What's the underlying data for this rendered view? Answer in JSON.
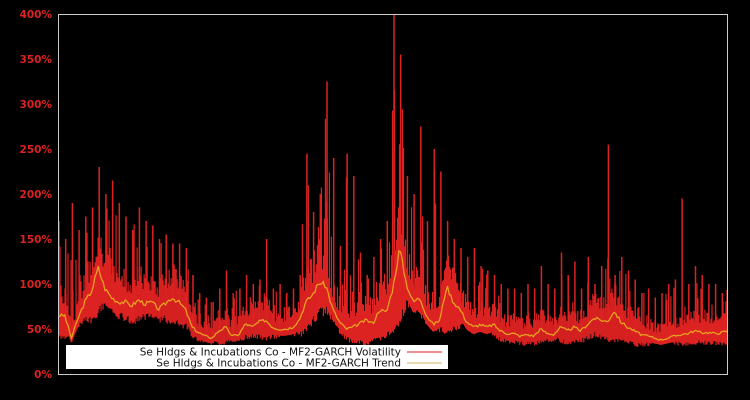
{
  "chart_data": {
    "type": "line",
    "title": "",
    "xlabel": "",
    "ylabel": "",
    "ylim": [
      0,
      400
    ],
    "y_ticks": [
      "0%",
      "50%",
      "100%",
      "150%",
      "200%",
      "250%",
      "300%",
      "350%",
      "400%"
    ],
    "y_tick_values": [
      0,
      50,
      100,
      150,
      200,
      250,
      300,
      350,
      400
    ],
    "grid": false,
    "legend_position": "lower-left",
    "colors": {
      "background": "#000000",
      "volatility": "#dd2222",
      "trend": "#e8a020",
      "legend_trend_swatch": "#d4b060",
      "frame": "#cccccc",
      "tick_label": "#dd2222"
    },
    "series": [
      {
        "name": "Se Hldgs & Incubations Co - MF2-GARCH Volatility",
        "note": "approximate envelope: index from left (0) to right (1) of plot, low/high volatility %",
        "x": [
          0.0,
          0.01,
          0.02,
          0.03,
          0.04,
          0.05,
          0.06,
          0.07,
          0.08,
          0.09,
          0.1,
          0.11,
          0.12,
          0.13,
          0.14,
          0.15,
          0.16,
          0.17,
          0.18,
          0.19,
          0.2,
          0.21,
          0.22,
          0.23,
          0.24,
          0.25,
          0.26,
          0.27,
          0.28,
          0.29,
          0.3,
          0.31,
          0.32,
          0.33,
          0.34,
          0.35,
          0.36,
          0.37,
          0.38,
          0.39,
          0.4,
          0.41,
          0.42,
          0.43,
          0.44,
          0.45,
          0.46,
          0.47,
          0.48,
          0.49,
          0.5,
          0.51,
          0.52,
          0.53,
          0.54,
          0.55,
          0.56,
          0.57,
          0.58,
          0.59,
          0.6,
          0.61,
          0.62,
          0.63,
          0.64,
          0.65,
          0.66,
          0.67,
          0.68,
          0.69,
          0.7,
          0.71,
          0.72,
          0.73,
          0.74,
          0.75,
          0.76,
          0.77,
          0.78,
          0.79,
          0.8,
          0.81,
          0.82,
          0.83,
          0.84,
          0.85,
          0.86,
          0.87,
          0.88,
          0.89,
          0.9,
          0.91,
          0.92,
          0.93,
          0.94,
          0.95,
          0.96,
          0.97,
          0.98,
          0.99,
          1.0
        ],
        "low": [
          45,
          40,
          50,
          55,
          60,
          62,
          70,
          80,
          72,
          68,
          64,
          60,
          62,
          66,
          68,
          64,
          62,
          60,
          58,
          55,
          45,
          40,
          38,
          36,
          35,
          36,
          38,
          40,
          42,
          44,
          42,
          40,
          42,
          44,
          48,
          46,
          44,
          50,
          60,
          70,
          72,
          65,
          50,
          40,
          38,
          36,
          35,
          38,
          40,
          44,
          50,
          60,
          80,
          78,
          70,
          60,
          55,
          50,
          48,
          50,
          55,
          60,
          66,
          60,
          55,
          45,
          40,
          38,
          36,
          35,
          34,
          35,
          36,
          38,
          40,
          38,
          36,
          36,
          38,
          40,
          45,
          42,
          40,
          38,
          38,
          36,
          34,
          33,
          34,
          36,
          38,
          38,
          36,
          34,
          34,
          35,
          36,
          36,
          35,
          34,
          35
        ],
        "high": [
          170,
          150,
          190,
          160,
          175,
          185,
          230,
          200,
          215,
          190,
          175,
          160,
          185,
          170,
          165,
          150,
          155,
          145,
          145,
          140,
          110,
          90,
          85,
          80,
          95,
          115,
          90,
          95,
          110,
          100,
          105,
          150,
          95,
          100,
          90,
          95,
          110,
          245,
          180,
          200,
          325,
          240,
          140,
          245,
          220,
          135,
          110,
          130,
          150,
          170,
          400,
          355,
          220,
          200,
          275,
          170,
          250,
          225,
          170,
          150,
          140,
          130,
          140,
          120,
          115,
          110,
          100,
          95,
          95,
          90,
          100,
          95,
          120,
          100,
          95,
          135,
          110,
          125,
          95,
          130,
          100,
          120,
          255,
          110,
          130,
          115,
          105,
          90,
          95,
          85,
          90,
          100,
          105,
          195,
          100,
          120,
          110,
          100,
          100,
          90,
          95
        ]
      },
      {
        "name": "Se Hldgs & Incubations Co - MF2-GARCH Trend",
        "x": [
          0.0,
          0.01,
          0.02,
          0.03,
          0.04,
          0.05,
          0.06,
          0.07,
          0.08,
          0.09,
          0.1,
          0.11,
          0.12,
          0.13,
          0.14,
          0.15,
          0.16,
          0.17,
          0.18,
          0.19,
          0.2,
          0.21,
          0.22,
          0.23,
          0.24,
          0.25,
          0.26,
          0.27,
          0.28,
          0.29,
          0.3,
          0.31,
          0.32,
          0.33,
          0.34,
          0.35,
          0.36,
          0.37,
          0.38,
          0.39,
          0.4,
          0.41,
          0.42,
          0.43,
          0.44,
          0.45,
          0.46,
          0.47,
          0.48,
          0.49,
          0.5,
          0.51,
          0.52,
          0.53,
          0.54,
          0.55,
          0.56,
          0.57,
          0.58,
          0.59,
          0.6,
          0.61,
          0.62,
          0.63,
          0.64,
          0.65,
          0.66,
          0.67,
          0.68,
          0.69,
          0.7,
          0.71,
          0.72,
          0.73,
          0.74,
          0.75,
          0.76,
          0.77,
          0.78,
          0.79,
          0.8,
          0.81,
          0.82,
          0.83,
          0.84,
          0.85,
          0.86,
          0.87,
          0.88,
          0.89,
          0.9,
          0.91,
          0.92,
          0.93,
          0.94,
          0.95,
          0.96,
          0.97,
          0.98,
          0.99,
          1.0
        ],
        "values": [
          65,
          65,
          40,
          62,
          80,
          92,
          118,
          95,
          85,
          80,
          80,
          76,
          82,
          78,
          80,
          72,
          78,
          85,
          80,
          72,
          52,
          46,
          42,
          40,
          48,
          52,
          42,
          44,
          56,
          52,
          58,
          60,
          52,
          50,
          50,
          52,
          60,
          80,
          88,
          102,
          98,
          72,
          58,
          50,
          52,
          56,
          60,
          56,
          72,
          68,
          96,
          140,
          100,
          80,
          85,
          65,
          55,
          60,
          98,
          80,
          72,
          58,
          52,
          55,
          52,
          55,
          48,
          45,
          45,
          42,
          44,
          42,
          50,
          45,
          44,
          52,
          48,
          52,
          48,
          55,
          62,
          60,
          58,
          70,
          58,
          52,
          48,
          44,
          42,
          40,
          38,
          40,
          42,
          44,
          45,
          48,
          46,
          46,
          45,
          46,
          48
        ]
      }
    ]
  },
  "legend": {
    "items": [
      {
        "label": "Se Hldgs & Incubations Co - MF2-GARCH Volatility"
      },
      {
        "label": "Se Hldgs & Incubations Co - MF2-GARCH Trend"
      }
    ]
  },
  "axis": {
    "y_labels": [
      "0%",
      "50%",
      "100%",
      "150%",
      "200%",
      "250%",
      "300%",
      "350%",
      "400%"
    ]
  }
}
